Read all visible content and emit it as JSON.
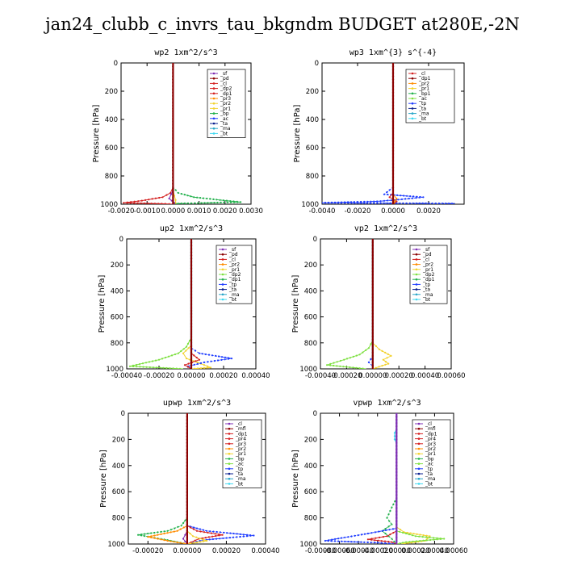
{
  "figure_title": "jan24_clubb_c_invrs_tau_bkgndm  BUDGET at280E,-2N",
  "colors": {
    "purple": "#7f2fb5",
    "dark_red": "#8b0000",
    "red": "#d42020",
    "orange": "#ff8c00",
    "yellow": "#f2d22e",
    "green": "#22b14c",
    "lime": "#7de040",
    "blue": "#1e3cff",
    "dark_blue": "#0a1f8f",
    "cyan": "#2aa7c9",
    "aqua": "#3fd8f0"
  },
  "chart_data": [
    {
      "type": "line",
      "title": "wp2  1xm^2/s^3",
      "ylabel": "Pressure [hPa]",
      "xlabel": "",
      "xlim": [
        -0.002,
        0.003
      ],
      "ylim": [
        1000,
        0
      ],
      "xticks": [
        -0.002,
        -0.001,
        0.0,
        0.001,
        0.002,
        0.003
      ],
      "xtick_labels": [
        "-0.0020",
        "-0.0010",
        "0.0000",
        "0.0010",
        "0.0020",
        "0.0030"
      ],
      "yticks": [
        0,
        200,
        400,
        600,
        800,
        1000
      ],
      "legend": [
        "_sf",
        "_pd",
        "_cl",
        "_dp2",
        "_dp1",
        "_pr3",
        "_pr2",
        "_pr1",
        "_bp",
        "_ac",
        "_ta",
        "_ma",
        "_bt"
      ],
      "legend_colors": [
        "purple",
        "dark_red",
        "red",
        "red",
        "red",
        "orange",
        "yellow",
        "yellow",
        "green",
        "blue",
        "dark_blue",
        "cyan",
        "aqua"
      ],
      "series": [
        {
          "name": "_bp",
          "color": "green",
          "x": [
            0,
            0,
            0.0002,
            0.0008,
            0.0018,
            0.0026,
            0.0002,
            0
          ],
          "y": [
            0,
            880,
            920,
            950,
            970,
            985,
            995,
            1000
          ]
        },
        {
          "name": "_dp1",
          "color": "red",
          "x": [
            0,
            0,
            -0.0001,
            -0.0004,
            -0.0012,
            -0.0019,
            -0.0003,
            0
          ],
          "y": [
            0,
            880,
            920,
            950,
            975,
            990,
            997,
            1000
          ]
        },
        {
          "name": "_pr1",
          "color": "yellow",
          "x": [
            0,
            0,
            5e-05,
            0.0001,
            0.0001,
            0
          ],
          "y": [
            0,
            900,
            940,
            970,
            990,
            1000
          ]
        },
        {
          "name": "_cl",
          "color": "purple",
          "x": [
            0,
            0,
            -0.00015,
            5e-05,
            0
          ],
          "y": [
            0,
            900,
            960,
            990,
            1000
          ]
        },
        {
          "name": "_pd",
          "color": "dark_red",
          "x": [
            0,
            0,
            0
          ],
          "y": [
            0,
            500,
            1000
          ]
        }
      ]
    },
    {
      "type": "line",
      "title": "wp3  1xm^{3} s^{-4}",
      "ylabel": "Pressure [hPa]",
      "xlabel": "",
      "xlim": [
        -0.004,
        0.004
      ],
      "ylim": [
        1000,
        0
      ],
      "xticks": [
        -0.004,
        -0.002,
        0.0,
        0.002
      ],
      "xtick_labels": [
        "-0.0040",
        "-0.0020",
        "0.0000",
        "0.0020"
      ],
      "yticks": [
        0,
        200,
        400,
        600,
        800,
        1000
      ],
      "legend": [
        "_cl",
        "_dp1",
        "_pr2",
        "_pr1",
        "_bp1",
        "_ac",
        "_tp",
        "_ta",
        "_ma",
        "_bt"
      ],
      "legend_colors": [
        "red",
        "dark_red",
        "orange",
        "yellow",
        "green",
        "lime",
        "blue",
        "dark_blue",
        "cyan",
        "aqua"
      ],
      "series": [
        {
          "name": "_tp",
          "color": "blue",
          "x": [
            0,
            0,
            -0.0002,
            -0.0005,
            0.0017,
            0.0001,
            -0.0009,
            -0.004,
            0.0035
          ],
          "y": [
            0,
            880,
            900,
            930,
            950,
            970,
            980,
            990,
            995
          ]
        },
        {
          "name": "_dp1",
          "color": "red",
          "x": [
            0,
            0,
            -0.0002,
            0.0002,
            0
          ],
          "y": [
            0,
            920,
            950,
            980,
            1000
          ]
        },
        {
          "name": "_pr1",
          "color": "orange",
          "x": [
            0,
            0,
            0.0002,
            0
          ],
          "y": [
            0,
            930,
            960,
            1000
          ]
        },
        {
          "name": "_cl",
          "color": "dark_red",
          "x": [
            0,
            0,
            0
          ],
          "y": [
            0,
            500,
            1000
          ]
        }
      ]
    },
    {
      "type": "line",
      "title": "up2  1xm^2/s^3",
      "ylabel": "Pressure [hPa]",
      "xlabel": "",
      "xlim": [
        -0.0004,
        0.0004
      ],
      "ylim": [
        1000,
        0
      ],
      "xticks": [
        -0.0004,
        -0.0002,
        0.0,
        0.0002,
        0.0004
      ],
      "xtick_labels": [
        "-0.00040",
        "-0.00020",
        "0.00000",
        "0.00020",
        "0.00040"
      ],
      "yticks": [
        0,
        200,
        400,
        600,
        800,
        1000
      ],
      "legend": [
        "_sf",
        "_pd",
        "_cl",
        "_pr2",
        "_pr1",
        "_dp2",
        "_dp1",
        "_tp",
        "_ta",
        "_ma",
        "_bt"
      ],
      "legend_colors": [
        "purple",
        "dark_red",
        "red",
        "orange",
        "yellow",
        "lime",
        "green",
        "blue",
        "dark_blue",
        "cyan",
        "aqua"
      ],
      "series": [
        {
          "name": "_dp2",
          "color": "lime",
          "x": [
            0,
            0,
            -3e-05,
            -8e-05,
            -0.0002,
            -0.00038,
            -5e-05
          ],
          "y": [
            0,
            760,
            830,
            880,
            930,
            980,
            1000
          ]
        },
        {
          "name": "_pr1",
          "color": "yellow",
          "x": [
            0,
            0,
            -5e-05,
            -3e-05,
            6e-05,
            0.00012,
            0
          ],
          "y": [
            0,
            820,
            880,
            920,
            960,
            990,
            1000
          ]
        },
        {
          "name": "_tp",
          "color": "blue",
          "x": [
            0,
            0,
            5e-05,
            0.00025,
            8e-05,
            -2e-05,
            0
          ],
          "y": [
            0,
            840,
            880,
            920,
            950,
            980,
            1000
          ]
        },
        {
          "name": "_bt",
          "color": "aqua",
          "x": [
            0,
            0,
            0,
            0
          ],
          "y": [
            0,
            180,
            220,
            1000
          ]
        },
        {
          "name": "_dp1",
          "color": "red",
          "x": [
            0,
            0,
            5e-05,
            -4e-05,
            0
          ],
          "y": [
            0,
            880,
            930,
            970,
            1000
          ]
        },
        {
          "name": "_pd",
          "color": "dark_red",
          "x": [
            0,
            0,
            0
          ],
          "y": [
            0,
            500,
            1000
          ]
        }
      ]
    },
    {
      "type": "line",
      "title": "vp2  1xm^2/s^3",
      "ylabel": "Pressure [hPa]",
      "xlabel": "",
      "xlim": [
        -0.0004,
        0.0006
      ],
      "ylim": [
        1000,
        0
      ],
      "xticks": [
        -0.0004,
        -0.0002,
        0.0,
        0.0002,
        0.0004,
        0.0006
      ],
      "xtick_labels": [
        "-0.00040",
        "-0.00020",
        "0.00000",
        "0.00020",
        "0.00040",
        "0.00060"
      ],
      "yticks": [
        0,
        200,
        400,
        600,
        800,
        1000
      ],
      "legend": [
        "_sf",
        "_pd",
        "_cl",
        "_pr2",
        "_pr1",
        "_dp2",
        "_dp1",
        "_tp",
        "_ta",
        "_ma",
        "_bt"
      ],
      "legend_colors": [
        "purple",
        "dark_red",
        "red",
        "orange",
        "yellow",
        "lime",
        "green",
        "blue",
        "dark_blue",
        "cyan",
        "aqua"
      ],
      "series": [
        {
          "name": "_dp2",
          "color": "lime",
          "x": [
            0,
            0,
            -3e-05,
            -0.0001,
            -0.00022,
            -0.00035,
            -5e-05
          ],
          "y": [
            0,
            780,
            840,
            890,
            930,
            970,
            1000
          ]
        },
        {
          "name": "_pr1",
          "color": "yellow",
          "x": [
            0,
            0,
            5e-05,
            0.00014,
            8e-05,
            0.00012,
            0
          ],
          "y": [
            0,
            800,
            850,
            900,
            930,
            960,
            1000
          ]
        },
        {
          "name": "_tp",
          "color": "blue",
          "x": [
            0,
            0,
            -3e-05,
            0,
            0
          ],
          "y": [
            0,
            900,
            950,
            980,
            1000
          ]
        },
        {
          "name": "_bt",
          "color": "aqua",
          "x": [
            0,
            0,
            0,
            0
          ],
          "y": [
            0,
            180,
            220,
            1000
          ]
        },
        {
          "name": "_pd",
          "color": "dark_red",
          "x": [
            0,
            0,
            0
          ],
          "y": [
            0,
            500,
            1000
          ]
        }
      ]
    },
    {
      "type": "line",
      "title": "upwp  1xm^2/s^3",
      "ylabel": "Pressure [hPa]",
      "xlabel": "",
      "xlim": [
        -0.0003,
        0.0004
      ],
      "ylim": [
        1000,
        0
      ],
      "xticks": [
        -0.0002,
        0.0,
        0.0002,
        0.0004
      ],
      "xtick_labels": [
        "-0.00020",
        "0.00000",
        "0.00020",
        "0.00040"
      ],
      "yticks": [
        0,
        200,
        400,
        600,
        800,
        1000
      ],
      "legend": [
        "_cl",
        "_mfl",
        "_dp1",
        "_pr4",
        "_pr3",
        "_pr2",
        "_pr1",
        "_bp",
        "_ac",
        "_tp",
        "_ta",
        "_ma",
        "_bt"
      ],
      "legend_colors": [
        "purple",
        "dark_red",
        "red",
        "red",
        "red",
        "orange",
        "yellow",
        "green",
        "lime",
        "blue",
        "dark_blue",
        "cyan",
        "aqua"
      ],
      "series": [
        {
          "name": "_bp",
          "color": "green",
          "x": [
            0,
            0,
            -3e-05,
            -0.0001,
            -0.00025,
            -0.0001,
            0
          ],
          "y": [
            0,
            800,
            860,
            900,
            930,
            970,
            1000
          ]
        },
        {
          "name": "_tp",
          "color": "blue",
          "x": [
            0,
            0,
            0.0001,
            0.00034,
            8e-05,
            0
          ],
          "y": [
            0,
            860,
            900,
            935,
            970,
            1000
          ]
        },
        {
          "name": "_pr2",
          "color": "orange",
          "x": [
            0,
            0,
            -5e-05,
            -0.0002,
            -0.0001,
            0
          ],
          "y": [
            0,
            860,
            900,
            945,
            975,
            1000
          ]
        },
        {
          "name": "_dp1",
          "color": "red",
          "x": [
            0,
            0,
            5e-05,
            0.00018,
            6e-05,
            0
          ],
          "y": [
            0,
            860,
            900,
            930,
            960,
            1000
          ]
        },
        {
          "name": "_pr1",
          "color": "yellow",
          "x": [
            0,
            0,
            3e-05,
            0.0001,
            0
          ],
          "y": [
            0,
            900,
            940,
            975,
            1000
          ]
        },
        {
          "name": "_cl",
          "color": "purple",
          "x": [
            0,
            0,
            -2e-05,
            0
          ],
          "y": [
            0,
            900,
            960,
            1000
          ]
        },
        {
          "name": "_mfl",
          "color": "dark_red",
          "x": [
            0,
            0,
            0
          ],
          "y": [
            0,
            500,
            1000
          ]
        }
      ]
    },
    {
      "type": "line",
      "title": "vpwp  1xm^2/s^3",
      "ylabel": "Pressure [hPa]",
      "xlabel": "",
      "xlim": [
        -0.0008,
        0.0006
      ],
      "ylim": [
        1000,
        0
      ],
      "xticks": [
        -0.0008,
        -0.0006,
        -0.0004,
        -0.0002,
        0.0,
        0.0002,
        0.0004,
        0.0006
      ],
      "xtick_labels": [
        "-0.00080",
        "-0.00060",
        "-0.00040",
        "-0.00020",
        "0.00000",
        "0.00020",
        "0.00040",
        "0.00060"
      ],
      "yticks": [
        0,
        200,
        400,
        600,
        800,
        1000
      ],
      "legend": [
        "_cl",
        "_mfl",
        "_dp1",
        "_pr4",
        "_pr3",
        "_pr2",
        "_pr1",
        "_bp",
        "_ac",
        "_tp",
        "_ta",
        "_ma",
        "_bt"
      ],
      "legend_colors": [
        "purple",
        "dark_red",
        "red",
        "red",
        "red",
        "orange",
        "yellow",
        "green",
        "lime",
        "blue",
        "dark_blue",
        "cyan",
        "aqua"
      ],
      "series": [
        {
          "name": "_bp",
          "color": "green",
          "x": [
            0,
            0,
            -5e-05,
            -0.0001,
            -5e-05,
            -0.00015,
            -5e-05,
            0
          ],
          "y": [
            0,
            650,
            720,
            800,
            850,
            900,
            960,
            1000
          ]
        },
        {
          "name": "_tp",
          "color": "blue",
          "x": [
            0,
            0,
            -0.0003,
            -0.00075,
            -0.0002,
            0
          ],
          "y": [
            0,
            880,
            920,
            975,
            990,
            1000
          ]
        },
        {
          "name": "_pr1",
          "color": "yellow",
          "x": [
            0,
            0,
            8e-05,
            0.00035,
            0.0003,
            5e-05
          ],
          "y": [
            0,
            870,
            910,
            940,
            975,
            1000
          ]
        },
        {
          "name": "_ac",
          "color": "lime",
          "x": [
            0,
            0,
            0.0002,
            0.0005,
            0.0001,
            0
          ],
          "y": [
            0,
            900,
            940,
            960,
            985,
            1000
          ]
        },
        {
          "name": "_dp1",
          "color": "red",
          "x": [
            0,
            0,
            -0.0001,
            -0.0003,
            -5e-05,
            0
          ],
          "y": [
            0,
            900,
            940,
            965,
            985,
            1000
          ]
        },
        {
          "name": "_bt",
          "color": "aqua",
          "x": [
            0,
            0,
            -2e-05,
            -2e-05,
            0,
            0
          ],
          "y": [
            0,
            120,
            150,
            200,
            230,
            1000
          ]
        },
        {
          "name": "_cl",
          "color": "purple",
          "x": [
            0,
            0,
            0
          ],
          "y": [
            0,
            500,
            1000
          ]
        }
      ]
    }
  ]
}
